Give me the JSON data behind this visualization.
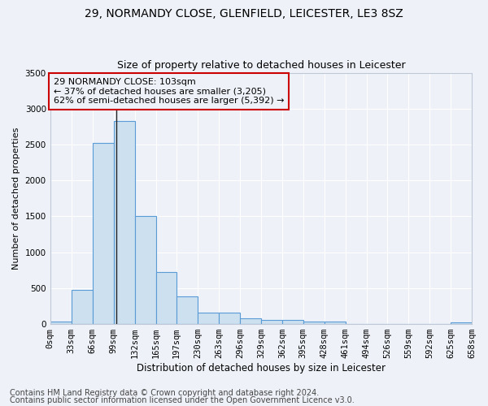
{
  "title1": "29, NORMANDY CLOSE, GLENFIELD, LEICESTER, LE3 8SZ",
  "title2": "Size of property relative to detached houses in Leicester",
  "xlabel": "Distribution of detached houses by size in Leicester",
  "ylabel": "Number of detached properties",
  "bin_edges": [
    0,
    33,
    66,
    99,
    132,
    165,
    197,
    230,
    263,
    296,
    329,
    362,
    395,
    428,
    461,
    494,
    526,
    559,
    592,
    625,
    658
  ],
  "bar_heights": [
    30,
    480,
    2520,
    2830,
    1510,
    730,
    390,
    155,
    155,
    75,
    55,
    55,
    30,
    30,
    5,
    5,
    5,
    5,
    0,
    20
  ],
  "bar_color": "#cce0f0",
  "bar_edge_color": "#5b9bd5",
  "property_value": 103,
  "ylim": [
    0,
    3500
  ],
  "annotation_text": "29 NORMANDY CLOSE: 103sqm\n← 37% of detached houses are smaller (3,205)\n62% of semi-detached houses are larger (5,392) →",
  "annotation_box_color": "#cc0000",
  "vline_color": "#222222",
  "background_color": "#eef2f8",
  "grid_color": "#ffffff",
  "footer_line1": "Contains HM Land Registry data © Crown copyright and database right 2024.",
  "footer_line2": "Contains public sector information licensed under the Open Government Licence v3.0.",
  "tick_labels": [
    "0sqm",
    "33sqm",
    "66sqm",
    "99sqm",
    "132sqm",
    "165sqm",
    "197sqm",
    "230sqm",
    "263sqm",
    "296sqm",
    "329sqm",
    "362sqm",
    "395sqm",
    "428sqm",
    "461sqm",
    "494sqm",
    "526sqm",
    "559sqm",
    "592sqm",
    "625sqm",
    "658sqm"
  ],
  "yticks": [
    0,
    500,
    1000,
    1500,
    2000,
    2500,
    3000,
    3500
  ],
  "title1_fontsize": 10,
  "title2_fontsize": 9,
  "xlabel_fontsize": 8.5,
  "ylabel_fontsize": 8,
  "tick_fontsize": 7.5,
  "annotation_fontsize": 8,
  "footer_fontsize": 7
}
